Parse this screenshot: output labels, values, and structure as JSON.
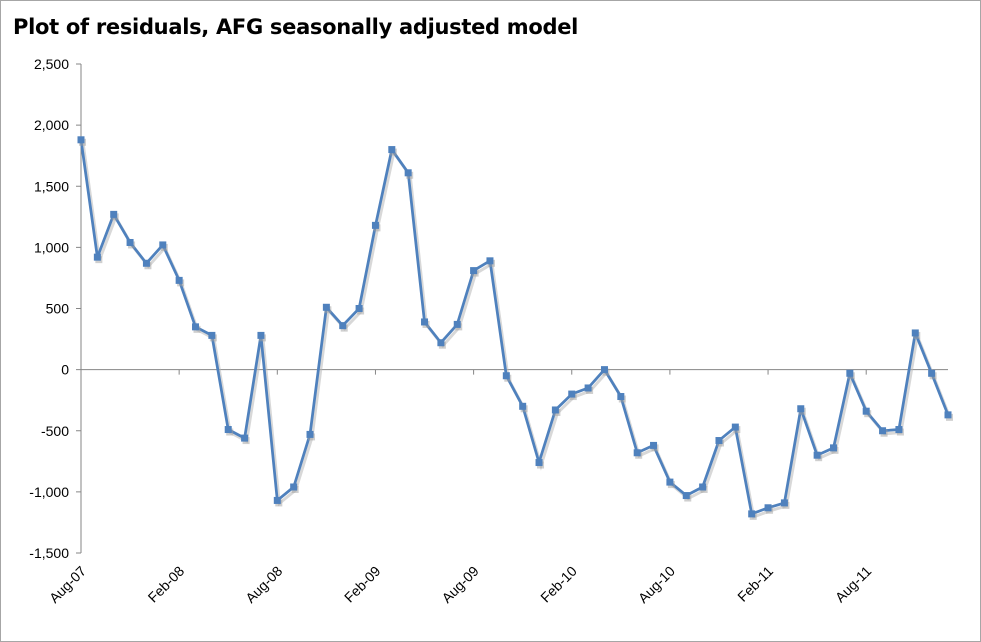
{
  "chart_data": {
    "type": "line",
    "title": "Plot of residuals, AFG seasonally adjusted model",
    "xlabel": "",
    "ylabel": "",
    "ylim": [
      -1500,
      2500
    ],
    "y_ticks": [
      "2,500",
      "2,000",
      "1,500",
      "1,000",
      "500",
      "0",
      "-500",
      "-1,000",
      "-1,500"
    ],
    "y_tick_values": [
      2500,
      2000,
      1500,
      1000,
      500,
      0,
      -500,
      -1000,
      -1500
    ],
    "x_tick_labels": [
      "Aug-07",
      "Feb-08",
      "Aug-08",
      "Feb-09",
      "Aug-09",
      "Feb-10",
      "Aug-10",
      "Feb-11",
      "Aug-11"
    ],
    "x_tick_index": [
      0,
      6,
      12,
      18,
      24,
      30,
      36,
      42,
      48
    ],
    "grid": false,
    "legend": "none",
    "series_color": "#4f81bd",
    "series": [
      {
        "values": [
          1880,
          920,
          1270,
          1040,
          870,
          1020,
          730,
          350,
          280,
          -490,
          -560,
          280,
          -1070,
          -960,
          -530,
          510,
          360,
          500,
          1180,
          1800,
          1610,
          390,
          220,
          370,
          810,
          890,
          -50,
          -300,
          -760,
          -330,
          -200,
          -150,
          0,
          -220,
          -680,
          -620,
          -920,
          -1030,
          -960,
          -580,
          -470,
          -1180,
          -1130,
          -1090,
          -320,
          -700,
          -640,
          -30,
          -340,
          -500,
          -490,
          300,
          -30,
          -370
        ]
      }
    ]
  }
}
